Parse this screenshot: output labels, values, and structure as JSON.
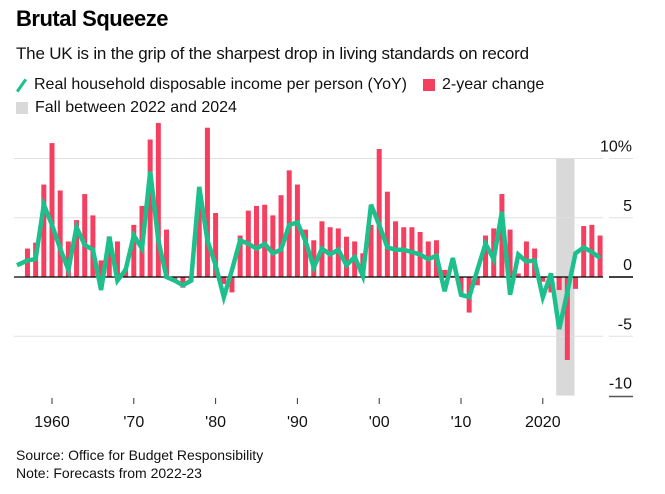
{
  "header": {
    "title": "Brutal Squeeze",
    "subtitle": "The UK is in the grip of the sharpest drop in living standards on record"
  },
  "legend": {
    "line_label": "Real household disposable income per person (YoY)",
    "bar_label": "2-year change",
    "band_label": "Fall between 2022 and 2024"
  },
  "footer": {
    "source": "Source: Office for Budget Responsibility",
    "note": "Note: Forecasts from 2022-23"
  },
  "colors": {
    "line": "#1dc08c",
    "bar": "#f43f61",
    "band": "#d9d9d9",
    "grid": "#e0e0e0",
    "zero": "#000000"
  },
  "chart_data": {
    "type": "bar",
    "title": "Brutal Squeeze",
    "subtitle": "The UK is in the grip of the sharpest drop in living standards on record",
    "xlabel": "",
    "ylabel": "",
    "xlim": [
      1955,
      2028
    ],
    "ylim": [
      -10,
      10
    ],
    "y_ticks": [
      10,
      5,
      0,
      -5,
      -10
    ],
    "y_tick_labels": [
      "10%",
      "5",
      "0",
      "-5",
      "-10"
    ],
    "x_ticks": [
      1960,
      1970,
      1980,
      1990,
      2000,
      2010,
      2020
    ],
    "x_tick_labels": [
      "1960",
      "'70",
      "'80",
      "'90",
      "'00",
      "'10",
      "2020"
    ],
    "grid": true,
    "y_axis_side": "right",
    "legend_position": "top-left",
    "highlight_band": {
      "label": "Fall between 2022 and 2024",
      "from": 2022,
      "to": 2024
    },
    "series": [
      {
        "name": "2-year change",
        "type": "bar",
        "x": [
          1957,
          1958,
          1959,
          1960,
          1961,
          1962,
          1963,
          1964,
          1965,
          1966,
          1967,
          1968,
          1969,
          1970,
          1971,
          1972,
          1973,
          1974,
          1975,
          1976,
          1977,
          1978,
          1979,
          1980,
          1981,
          1982,
          1983,
          1984,
          1985,
          1986,
          1987,
          1988,
          1989,
          1990,
          1991,
          1992,
          1993,
          1994,
          1995,
          1996,
          1997,
          1998,
          1999,
          2000,
          2001,
          2002,
          2003,
          2004,
          2005,
          2006,
          2007,
          2008,
          2009,
          2010,
          2011,
          2012,
          2013,
          2014,
          2015,
          2016,
          2017,
          2018,
          2019,
          2020,
          2021,
          2022,
          2023,
          2024,
          2025,
          2026,
          2027
        ],
        "values": [
          2.4,
          2.9,
          7.8,
          11.3,
          7.3,
          3.0,
          4.8,
          7.0,
          5.2,
          1.4,
          3.4,
          3.0,
          0.7,
          4.4,
          6.0,
          11.6,
          13.0,
          4.0,
          -0.3,
          -0.9,
          -0.4,
          6.2,
          12.6,
          5.4,
          -0.6,
          -1.3,
          3.5,
          5.6,
          6.0,
          6.1,
          5.2,
          6.9,
          9.0,
          7.8,
          4.0,
          3.1,
          4.7,
          4.2,
          4.1,
          3.4,
          3.0,
          2.0,
          4.4,
          10.8,
          7.2,
          4.7,
          4.2,
          4.2,
          3.8,
          3.0,
          3.1,
          0.6,
          0.1,
          -1.4,
          -3.0,
          -0.7,
          3.5,
          4.1,
          7.0,
          4.0,
          0.3,
          3.0,
          2.4,
          -0.4,
          -1.3,
          -1.1,
          -7.0,
          -1.0,
          4.3,
          4.4,
          3.5
        ]
      },
      {
        "name": "Real household disposable income per person (YoY)",
        "type": "line",
        "x": [
          1956,
          1957,
          1958,
          1959,
          1960,
          1961,
          1962,
          1963,
          1964,
          1965,
          1966,
          1967,
          1968,
          1969,
          1970,
          1971,
          1972,
          1973,
          1974,
          1975,
          1976,
          1977,
          1978,
          1979,
          1980,
          1981,
          1982,
          1983,
          1984,
          1985,
          1986,
          1987,
          1988,
          1989,
          1990,
          1991,
          1992,
          1993,
          1994,
          1995,
          1996,
          1997,
          1998,
          1999,
          2000,
          2001,
          2002,
          2003,
          2004,
          2005,
          2006,
          2007,
          2008,
          2009,
          2010,
          2011,
          2012,
          2013,
          2014,
          2015,
          2016,
          2017,
          2018,
          2019,
          2020,
          2021,
          2022,
          2023,
          2024,
          2025,
          2026,
          2027
        ],
        "values": [
          1.0,
          1.4,
          1.5,
          6.1,
          4.4,
          2.4,
          0.6,
          4.2,
          2.7,
          2.3,
          -1.1,
          3.4,
          -0.3,
          0.6,
          3.5,
          2.4,
          8.9,
          3.1,
          0.0,
          -0.3,
          -0.7,
          -0.3,
          7.6,
          3.1,
          1.0,
          -1.7,
          0.6,
          3.1,
          2.8,
          2.4,
          2.8,
          2.0,
          2.3,
          4.4,
          4.6,
          3.0,
          0.8,
          2.4,
          1.9,
          2.3,
          1.0,
          1.7,
          0.1,
          6.1,
          4.4,
          2.5,
          2.3,
          2.3,
          2.1,
          1.9,
          1.5,
          1.8,
          -1.2,
          1.6,
          -1.5,
          -1.7,
          0.6,
          2.8,
          1.5,
          5.5,
          -1.5,
          1.9,
          1.3,
          1.4,
          -1.7,
          0.3,
          -4.4,
          -1.3,
          2.0,
          2.5,
          2.1,
          1.6
        ]
      }
    ]
  }
}
